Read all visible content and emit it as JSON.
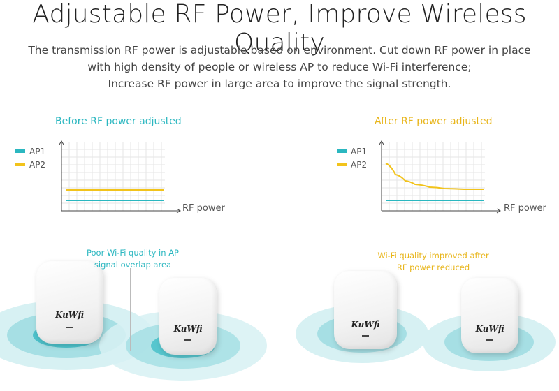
{
  "header": {
    "title": "Adjustable RF Power, Improve Wireless Quality",
    "description": [
      "The transmission RF power is adjustable based on environment. Cut down RF power in place",
      "with high density of people or wireless AP to reduce Wi-Fi interference;",
      "Increase RF power in large area to improve the signal strength."
    ]
  },
  "colors": {
    "ap1": "#2bb7c0",
    "ap2": "#f2c31b",
    "before_title": "#2bb7c0",
    "after_title": "#e8b51a"
  },
  "chart_data": [
    {
      "type": "line",
      "title": "Before RF power adjusted",
      "xlabel": "RF power",
      "ylabel": "",
      "legend": [
        "AP1",
        "AP2"
      ],
      "grid": true,
      "series": [
        {
          "name": "AP1",
          "x": [
            0,
            1
          ],
          "values": [
            0.15,
            0.15
          ]
        },
        {
          "name": "AP2",
          "x": [
            0,
            1
          ],
          "values": [
            0.3,
            0.3
          ]
        }
      ]
    },
    {
      "type": "line",
      "title": "After RF power adjusted",
      "xlabel": "RF power",
      "ylabel": "",
      "legend": [
        "AP1",
        "AP2"
      ],
      "grid": true,
      "series": [
        {
          "name": "AP1",
          "x": [
            0,
            1
          ],
          "values": [
            0.15,
            0.15
          ]
        },
        {
          "name": "AP2",
          "x": [
            0,
            0.1,
            0.2,
            0.3,
            0.45,
            0.6,
            0.8,
            1.0
          ],
          "values": [
            0.68,
            0.52,
            0.43,
            0.38,
            0.34,
            0.32,
            0.31,
            0.31
          ]
        }
      ]
    }
  ],
  "scenes": {
    "left_caption": [
      "Poor Wi-Fi quality in AP",
      "signal overlap area"
    ],
    "right_caption": [
      "Wi-Fi quality improved after",
      "RF power reduced"
    ],
    "brand": "KuWfi"
  }
}
